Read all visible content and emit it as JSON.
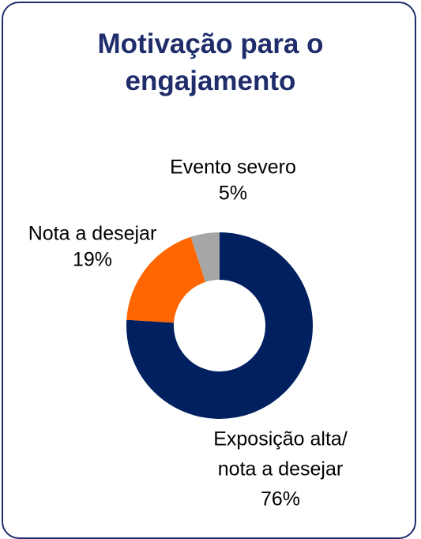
{
  "chart_data": {
    "type": "donut",
    "title": "Motivação para o engajamento",
    "categories": [
      [
        "Exposição alta/",
        "nota a desejar"
      ],
      [
        "Nota a desejar"
      ],
      [
        "Evento severo"
      ]
    ],
    "values": [
      76,
      19,
      5
    ],
    "value_labels": [
      "76%",
      "19%",
      "5%"
    ],
    "colors": [
      "#002060",
      "#ff6600",
      "#a6a6a6"
    ]
  }
}
